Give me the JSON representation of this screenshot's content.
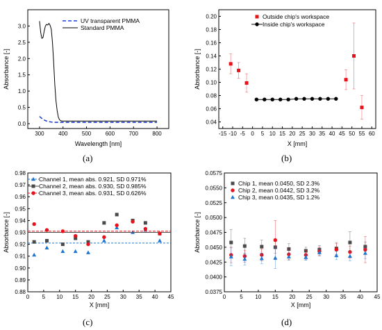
{
  "chart_data": [
    {
      "panel": "a",
      "caption": "(a)",
      "type": "line",
      "xlabel": "Wavelength [nm]",
      "ylabel": "Absorbance [-]",
      "xlim": [
        250,
        850
      ],
      "ylim": [
        -0.15,
        3.5
      ],
      "xticks": [
        300,
        400,
        500,
        600,
        700,
        800
      ],
      "yticks": [
        0.0,
        0.5,
        1.0,
        1.5,
        2.0,
        2.5,
        3.0
      ],
      "ytick_labels": [
        "0.0",
        "0.5",
        "1.0",
        "1.5",
        "2.0",
        "2.5",
        "3.0"
      ],
      "legend_position": "top-right",
      "series": [
        {
          "name": "UV transparent PMMA",
          "color": "#1f3fd6",
          "dash": "dashed",
          "x": [
            300,
            305,
            310,
            315,
            320,
            330,
            340,
            350,
            360,
            370,
            380,
            400,
            450,
            500,
            600,
            700,
            800
          ],
          "y": [
            0.22,
            0.19,
            0.16,
            0.13,
            0.11,
            0.08,
            0.06,
            0.05,
            0.04,
            0.04,
            0.04,
            0.04,
            0.04,
            0.04,
            0.04,
            0.04,
            0.04
          ]
        },
        {
          "name": "Standard PMMA",
          "color": "#000000",
          "dash": "solid",
          "x": [
            300,
            305,
            310,
            315,
            320,
            325,
            330,
            335,
            340,
            345,
            350,
            355,
            360,
            365,
            370,
            375,
            380,
            385,
            390,
            395,
            400,
            450,
            500,
            600,
            700,
            800
          ],
          "y": [
            3.15,
            2.8,
            2.62,
            2.65,
            2.85,
            3.0,
            3.05,
            3.03,
            3.08,
            3.02,
            2.9,
            2.5,
            1.9,
            1.2,
            0.7,
            0.4,
            0.2,
            0.12,
            0.09,
            0.08,
            0.08,
            0.08,
            0.08,
            0.08,
            0.08,
            0.08
          ]
        }
      ]
    },
    {
      "panel": "b",
      "caption": "(b)",
      "type": "scatter",
      "xlabel": "X [mm]",
      "ylabel": "Absorbance [-]",
      "xlim": [
        -17,
        62
      ],
      "ylim": [
        0.03,
        0.21
      ],
      "xticks": [
        -15,
        -10,
        -5,
        0,
        5,
        10,
        15,
        20,
        25,
        30,
        35,
        40,
        45,
        50,
        55,
        60
      ],
      "yticks": [
        0.04,
        0.06,
        0.08,
        0.1,
        0.12,
        0.14,
        0.16,
        0.18,
        0.2
      ],
      "ytick_labels": [
        "0.04",
        "0.06",
        "0.08",
        "0.10",
        "0.12",
        "0.14",
        "0.16",
        "0.18",
        "0.20"
      ],
      "legend_position": "top-right",
      "series": [
        {
          "name": "Outside chip's workspace",
          "color": "#e8101a",
          "marker": "square",
          "x": [
            -11,
            -7,
            -3,
            47,
            51,
            55
          ],
          "y": [
            0.128,
            0.118,
            0.099,
            0.104,
            0.14,
            0.062
          ],
          "err": [
            0.015,
            0.012,
            0.014,
            0.015,
            0.05,
            0.018
          ]
        },
        {
          "name": "Inside chip's workspace",
          "color": "#000000",
          "marker": "circle",
          "line": true,
          "x": [
            2,
            6,
            10,
            14,
            18,
            22,
            26,
            30,
            34,
            38,
            42
          ],
          "y": [
            0.074,
            0.074,
            0.074,
            0.074,
            0.074,
            0.075,
            0.075,
            0.075,
            0.075,
            0.075,
            0.075
          ]
        }
      ]
    },
    {
      "panel": "c",
      "caption": "(c)",
      "type": "scatter",
      "xlabel": "X [mm]",
      "ylabel": "Absorbance [-]",
      "xlim": [
        0,
        45
      ],
      "ylim": [
        0.88,
        0.98
      ],
      "xticks": [
        0,
        5,
        10,
        15,
        20,
        25,
        30,
        35,
        40,
        45
      ],
      "yticks": [
        0.88,
        0.89,
        0.9,
        0.91,
        0.92,
        0.93,
        0.94,
        0.95,
        0.96,
        0.97,
        0.98
      ],
      "ytick_labels": [
        "0.88",
        "0.89",
        "0.90",
        "0.91",
        "0.92",
        "0.93",
        "0.94",
        "0.95",
        "0.96",
        "0.97",
        "0.98"
      ],
      "legend_position": "top-left",
      "series": [
        {
          "name": "Channel 1, mean abs. 0.921, SD 0.971%",
          "color": "#1f77d0",
          "marker": "triangle",
          "mean": 0.921,
          "x": [
            2,
            6,
            11,
            15,
            19,
            24,
            28,
            33,
            37,
            41.5
          ],
          "y": [
            0.911,
            0.917,
            0.914,
            0.914,
            0.913,
            0.923,
            0.934,
            0.93,
            0.932,
            0.923
          ]
        },
        {
          "name": "Channel 2, mean abs. 0.930, SD 0.985%",
          "color": "#4a4a4a",
          "marker": "square",
          "mean": 0.93,
          "x": [
            2,
            6,
            11,
            15,
            19,
            24,
            28,
            33,
            37,
            41.5
          ],
          "y": [
            0.922,
            0.923,
            0.92,
            0.925,
            0.922,
            0.938,
            0.945,
            0.94,
            0.938,
            0.929
          ]
        },
        {
          "name": "Channel 3, mean abs. 0.931, SD 0.626%",
          "color": "#e8101a",
          "marker": "circle",
          "mean": 0.931,
          "x": [
            2,
            6,
            11,
            15,
            19,
            24,
            28,
            33,
            37,
            41.5
          ],
          "y": [
            0.937,
            0.932,
            0.931,
            0.927,
            0.92,
            0.926,
            0.936,
            0.939,
            0.933,
            0.929
          ]
        }
      ]
    },
    {
      "panel": "d",
      "caption": "(d)",
      "type": "scatter",
      "xlabel": "X [mm]",
      "ylabel": "Absorbance [-]",
      "xlim": [
        0,
        45
      ],
      "ylim": [
        0.0375,
        0.0575
      ],
      "xticks": [
        0,
        5,
        10,
        15,
        20,
        25,
        30,
        35,
        40,
        45
      ],
      "yticks": [
        0.0375,
        0.04,
        0.0425,
        0.045,
        0.0475,
        0.05,
        0.0525,
        0.055,
        0.0575
      ],
      "ytick_labels": [
        "0.0375",
        "0.0400",
        "0.0425",
        "0.0450",
        "0.0475",
        "0.0500",
        "0.0525",
        "0.0550",
        "0.0575"
      ],
      "legend_position": "top-left",
      "series": [
        {
          "name": "Chip 1, mean 0.0450, SD 2.3%",
          "color": "#4a4a4a",
          "marker": "square",
          "x": [
            2,
            6,
            11,
            15,
            19,
            24,
            28,
            33,
            37,
            41.5
          ],
          "y": [
            0.0458,
            0.0452,
            0.0451,
            0.045,
            0.0447,
            0.0444,
            0.0446,
            0.0448,
            0.0458,
            0.0451
          ],
          "err": [
            0.0022,
            0.0013,
            0.0011,
            0.001,
            0.0009,
            0.0006,
            0.0007,
            0.001,
            0.0018,
            0.0008
          ]
        },
        {
          "name": "Chip 2, mean 0.0442, SD 3.2%",
          "color": "#e8101a",
          "marker": "circle",
          "x": [
            2,
            6,
            11,
            15,
            19,
            24,
            28,
            33,
            37,
            41.5
          ],
          "y": [
            0.0437,
            0.0435,
            0.0437,
            0.0462,
            0.0438,
            0.0437,
            0.0443,
            0.0446,
            0.0442,
            0.0446
          ],
          "err": [
            0.0013,
            0.001,
            0.001,
            0.0033,
            0.0009,
            0.0008,
            0.0007,
            0.001,
            0.001,
            0.0022
          ]
        },
        {
          "name": "Chip 3, mean 0.0435, SD 1.2%",
          "color": "#1f77d0",
          "marker": "triangle",
          "x": [
            2,
            6,
            11,
            15,
            19,
            24,
            28,
            33,
            37,
            41.5
          ],
          "y": [
            0.0434,
            0.043,
            0.0431,
            0.0432,
            0.0434,
            0.0433,
            0.0441,
            0.0436,
            0.0435,
            0.044
          ],
          "err": [
            0.0015,
            0.001,
            0.0009,
            0.0018,
            0.0006,
            0.0005,
            0.0006,
            0.0007,
            0.0008,
            0.0009
          ]
        }
      ]
    }
  ]
}
